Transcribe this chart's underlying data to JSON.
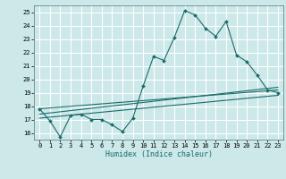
{
  "xlabel": "Humidex (Indice chaleur)",
  "bg_color": "#cce8e8",
  "grid_color": "#ffffff",
  "line_color": "#1a6b6b",
  "xlim": [
    -0.5,
    23.5
  ],
  "ylim": [
    15.5,
    25.5
  ],
  "yticks": [
    16,
    17,
    18,
    19,
    20,
    21,
    22,
    23,
    24,
    25
  ],
  "xticks": [
    0,
    1,
    2,
    3,
    4,
    5,
    6,
    7,
    8,
    9,
    10,
    11,
    12,
    13,
    14,
    15,
    16,
    17,
    18,
    19,
    20,
    21,
    22,
    23
  ],
  "main_y": [
    17.8,
    16.9,
    15.7,
    17.3,
    17.4,
    17.0,
    17.0,
    16.6,
    16.1,
    17.1,
    19.5,
    21.7,
    21.4,
    23.1,
    25.1,
    24.8,
    23.8,
    23.2,
    24.3,
    21.8,
    21.3,
    20.3,
    19.2,
    19.0
  ],
  "regression_lines": [
    {
      "x_start": 0,
      "x_end": 23,
      "y_start": 17.8,
      "y_end": 19.2
    },
    {
      "x_start": 0,
      "x_end": 23,
      "y_start": 17.4,
      "y_end": 19.4
    },
    {
      "x_start": 0,
      "x_end": 23,
      "y_start": 17.1,
      "y_end": 18.8
    }
  ]
}
